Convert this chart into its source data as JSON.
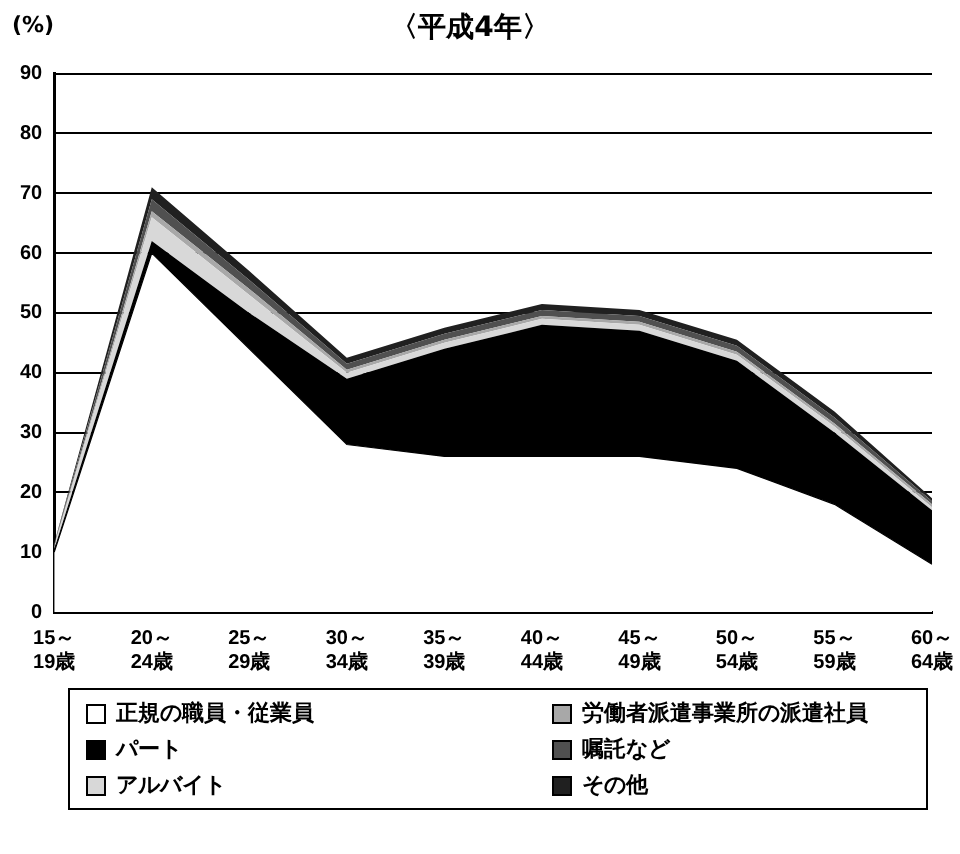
{
  "chart_data": {
    "type": "area",
    "stacked": true,
    "title": "〈平成4年〉",
    "ylabel": "(%)",
    "categories": [
      "15～19歳",
      "20～24歳",
      "25～29歳",
      "30～34歳",
      "35～39歳",
      "40～44歳",
      "45～49歳",
      "50～54歳",
      "55～59歳",
      "60～64歳"
    ],
    "ylim": [
      0,
      90
    ],
    "yticks": [
      0,
      10,
      20,
      30,
      40,
      50,
      60,
      70,
      80,
      90
    ],
    "grid": "y",
    "legend": "bottom",
    "series": [
      {
        "name": "正規の職員・従業員",
        "color": "#ffffff",
        "values": [
          10,
          60,
          44,
          28,
          26,
          26,
          26,
          24,
          18,
          8
        ]
      },
      {
        "name": "パート",
        "color": "#000000",
        "values": [
          0.5,
          2,
          6,
          11,
          18,
          22,
          21,
          18,
          12,
          9
        ]
      },
      {
        "name": "アルバイト",
        "color": "#d8d8d8",
        "values": [
          0.5,
          4,
          3,
          1,
          1,
          1,
          1,
          1,
          1,
          0.5
        ]
      },
      {
        "name": "労働者派遣事業所の派遣社員",
        "color": "#a8a8a8",
        "values": [
          0.2,
          1,
          1,
          0.5,
          0.5,
          0.5,
          0.5,
          0.5,
          0.5,
          0.5
        ]
      },
      {
        "name": "嘱託など",
        "color": "#505050",
        "values": [
          0.2,
          2,
          1.5,
          1,
          1,
          1,
          1,
          1,
          1,
          0.5
        ]
      },
      {
        "name": "その他",
        "color": "#202020",
        "values": [
          0.1,
          2,
          1.5,
          1,
          1,
          1,
          1,
          1,
          1,
          0.5
        ]
      }
    ]
  }
}
